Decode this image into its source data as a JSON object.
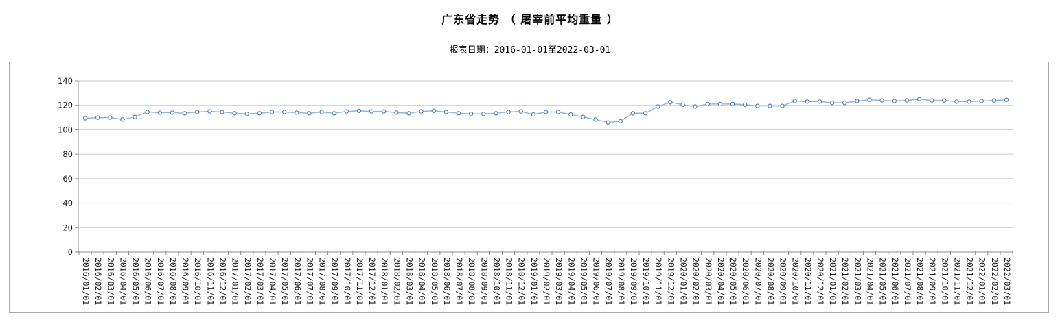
{
  "header": {
    "title": "广东省走势 （ 屠宰前平均重量 ）",
    "subtitle": "报表日期：2016-01-01至2022-03-01"
  },
  "chart_data": {
    "type": "line",
    "title": "广东省走势 （ 屠宰前平均重量 ）",
    "subtitle": "报表日期：2016-01-01至2022-03-01",
    "categories": [
      "2016/01/01",
      "2016/02/01",
      "2016/03/01",
      "2016/04/01",
      "2016/05/01",
      "2016/06/01",
      "2016/07/01",
      "2016/08/01",
      "2016/09/01",
      "2016/10/01",
      "2016/11/01",
      "2016/12/01",
      "2017/01/01",
      "2017/02/01",
      "2017/03/01",
      "2017/04/01",
      "2017/05/01",
      "2017/06/01",
      "2017/07/01",
      "2017/08/01",
      "2017/09/01",
      "2017/10/01",
      "2017/11/01",
      "2017/12/01",
      "2018/01/01",
      "2018/02/01",
      "2018/03/01",
      "2018/04/01",
      "2018/05/01",
      "2018/06/01",
      "2018/07/01",
      "2018/08/01",
      "2018/09/01",
      "2018/10/01",
      "2018/11/01",
      "2018/12/01",
      "2019/01/01",
      "2019/02/01",
      "2019/03/01",
      "2019/04/01",
      "2019/05/01",
      "2019/06/01",
      "2019/07/01",
      "2019/08/01",
      "2019/09/01",
      "2019/10/01",
      "2019/11/01",
      "2019/12/01",
      "2020/01/01",
      "2020/02/01",
      "2020/03/01",
      "2020/04/01",
      "2020/05/01",
      "2020/06/01",
      "2020/07/01",
      "2020/08/01",
      "2020/09/01",
      "2020/10/01",
      "2020/11/01",
      "2020/12/01",
      "2021/01/01",
      "2021/02/01",
      "2021/03/01",
      "2021/04/01",
      "2021/05/01",
      "2021/06/01",
      "2021/07/01",
      "2021/08/01",
      "2021/09/01",
      "2021/10/01",
      "2021/11/01",
      "2021/12/01",
      "2022/01/01",
      "2022/02/01",
      "2022/03/01"
    ],
    "series": [
      {
        "name": "屠宰前平均重量",
        "values": [
          109.5,
          110,
          110,
          108.5,
          110.5,
          114.5,
          114,
          114,
          113.5,
          114.5,
          115,
          114.5,
          113.5,
          113,
          113.5,
          114.5,
          114.5,
          114,
          113.5,
          114.5,
          113.5,
          115,
          115.5,
          115,
          115,
          114,
          113.5,
          115,
          115.5,
          114.5,
          113.5,
          113,
          113,
          113.5,
          114.5,
          115,
          112.5,
          114.5,
          114.5,
          112.5,
          110.5,
          108.5,
          106,
          107,
          113.5,
          113.5,
          119,
          122.5,
          120.5,
          119,
          121,
          121,
          121,
          120.5,
          119.5,
          119.5,
          119.5,
          123.5,
          123,
          123,
          122,
          122,
          123.5,
          124.5,
          124,
          123.5,
          124,
          125,
          124,
          124,
          123,
          123,
          123.5,
          124,
          124.5
        ]
      }
    ],
    "xlabel": "",
    "ylabel": "",
    "ylim": [
      0,
      140
    ],
    "yticks": [
      0,
      20,
      40,
      60,
      80,
      100,
      120,
      140
    ],
    "grid": true,
    "legend": "none",
    "x_label_rotation": 90,
    "marker": "open-circle",
    "colors": {
      "line": "#93b5dc",
      "marker_stroke": "#4f81bd",
      "marker_fill": "#ffffff",
      "gridline": "#c9c9c9",
      "axis": "#8c8c8c",
      "frame_border": "#a9a9a9",
      "label_text": "#1a1a1a"
    }
  }
}
